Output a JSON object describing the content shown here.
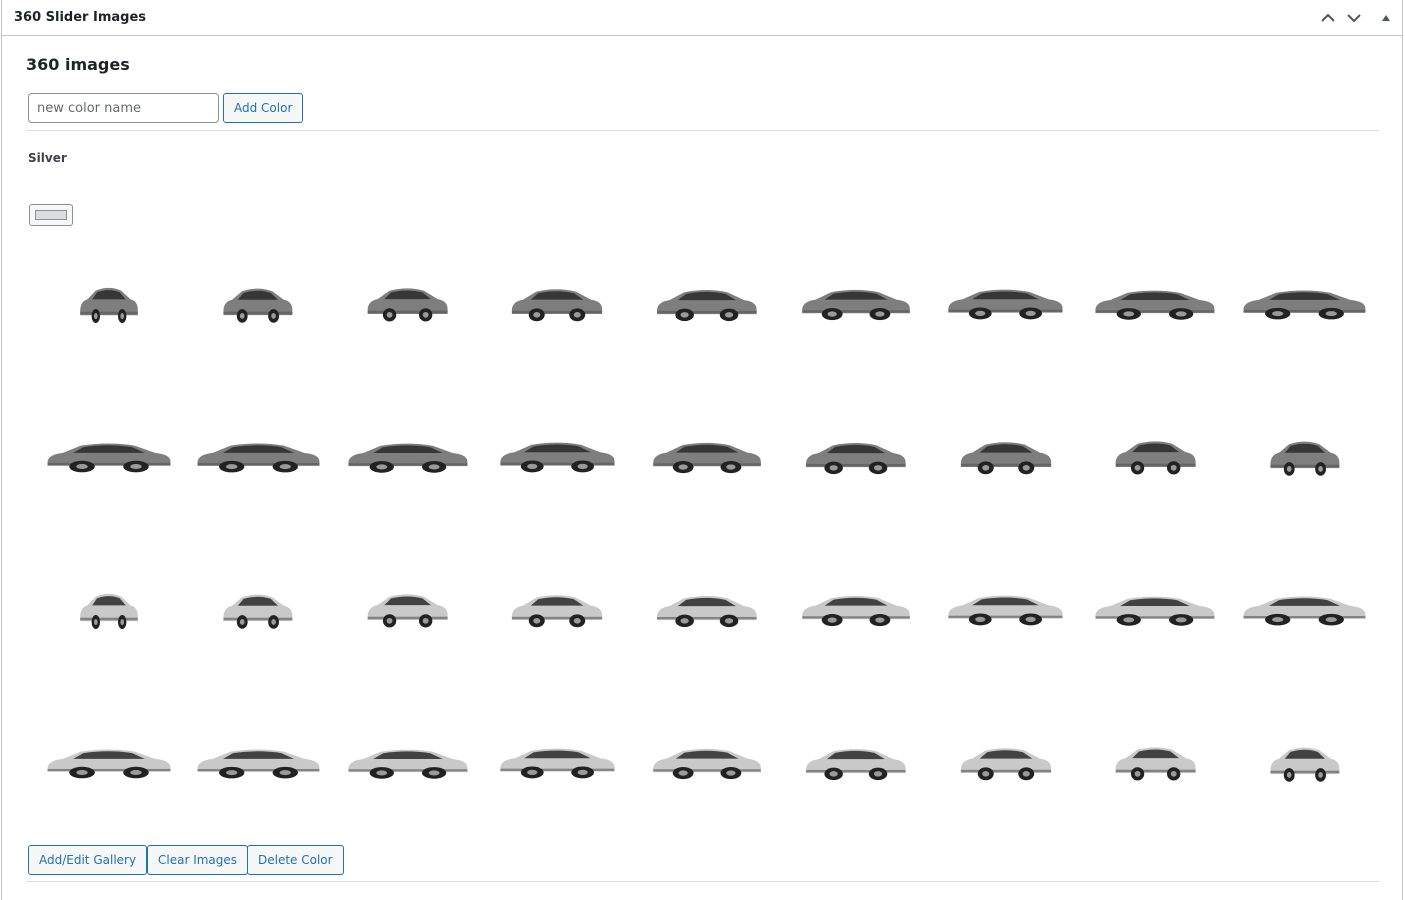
{
  "metabox": {
    "title": "360 Slider Images",
    "controls": [
      "chevron-up-icon",
      "chevron-down-icon",
      "triangle-up-icon"
    ]
  },
  "section": {
    "heading": "360 images",
    "input_placeholder": "new color name",
    "add_color_label": "Add Color"
  },
  "color": {
    "name": "Silver",
    "swatch_hex": "#dcdcdc"
  },
  "gallery": {
    "image_count": 36,
    "image_icon": "car-image",
    "car_colors": {
      "dark": "#7e7e7e",
      "light": "#c9c9c9",
      "wheel": "#222222",
      "glass": "#2a2a2a"
    }
  },
  "actions": {
    "add_edit_label": "Add/Edit Gallery",
    "clear_label": "Clear Images",
    "delete_label": "Delete Color"
  },
  "colors": {
    "accent": "#2271b1",
    "border": "#c3c4c7",
    "text": "#1d2327"
  }
}
